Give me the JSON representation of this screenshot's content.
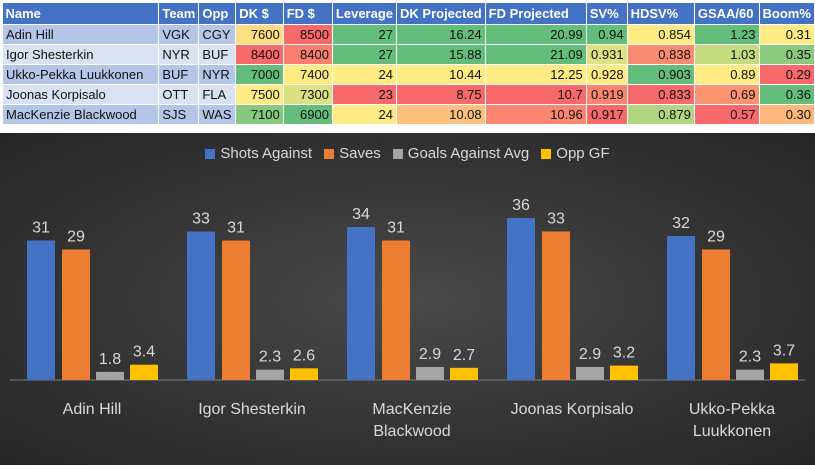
{
  "table": {
    "headers": [
      "Name",
      "Team",
      "Opp",
      "DK $",
      "FD $",
      "Leverage",
      "DK Projected",
      "FD Projected",
      "SV%",
      "HDSV%",
      "GSAA/60",
      "Boom%"
    ],
    "rows": [
      {
        "cells": [
          "Adin Hill",
          "VGK",
          "CGY",
          "7600",
          "8500",
          "27",
          "16.24",
          "20.99",
          "0.94",
          "0.854",
          "1.23",
          "0.31"
        ],
        "colors": [
          "#FFDD82",
          "#F8696B",
          "#63BE7B",
          "#63BE7B",
          "#63BE7B",
          "#63BE7B",
          "#FFEB84",
          "#63BE7B",
          "#FFEB84"
        ]
      },
      {
        "cells": [
          "Igor Shesterkin",
          "NYR",
          "BUF",
          "8400",
          "8400",
          "27",
          "15.88",
          "21.09",
          "0.931",
          "0.838",
          "1.03",
          "0.35"
        ],
        "colors": [
          "#F8696B",
          "#F97E6F",
          "#63BE7B",
          "#63BE7B",
          "#63BE7B",
          "#DCE282",
          "#FA8B71",
          "#C5DB80",
          "#8ACA7E"
        ]
      },
      {
        "cells": [
          "Ukko-Pekka Luukkonen",
          "BUF",
          "NYR",
          "7000",
          "7400",
          "24",
          "10.44",
          "12.25",
          "0.928",
          "0.903",
          "0.89",
          "0.29"
        ],
        "colors": [
          "#63BE7B",
          "#FFEB84",
          "#FFEB84",
          "#FFEB84",
          "#FFEB84",
          "#FFEB84",
          "#63BE7B",
          "#FFEB84",
          "#F8696B"
        ]
      },
      {
        "cells": [
          "Joonas Korpisalo",
          "OTT",
          "FLA",
          "7500",
          "7300",
          "23",
          "8.75",
          "10.7",
          "0.919",
          "0.833",
          "0.69",
          "0.36"
        ],
        "colors": [
          "#FFEB84",
          "#DCE282",
          "#F8696B",
          "#F8696B",
          "#F8696B",
          "#FA8570",
          "#F8696B",
          "#FA9473",
          "#63BE7B"
        ]
      },
      {
        "cells": [
          "MacKenzie Blackwood",
          "SJS",
          "WAS",
          "7100",
          "6900",
          "24",
          "10.08",
          "10.96",
          "0.917",
          "0.879",
          "0.57",
          "0.30"
        ],
        "colors": [
          "#86C97E",
          "#63BE7B",
          "#FFEB84",
          "#FDC07C",
          "#FA8570",
          "#F8696B",
          "#B1D580",
          "#F8696B",
          "#FDB77A"
        ]
      }
    ]
  },
  "chart_data": {
    "type": "bar",
    "categories": [
      "Adin Hill",
      "Igor Shesterkin",
      "MacKenzie Blackwood",
      "Joonas Korpisalo",
      "Ukko-Pekka Luukkonen"
    ],
    "category_lines": [
      [
        "Adin Hill"
      ],
      [
        "Igor Shesterkin"
      ],
      [
        "MacKenzie",
        "Blackwood"
      ],
      [
        "Joonas Korpisalo"
      ],
      [
        "Ukko-Pekka",
        "Luukkonen"
      ]
    ],
    "series": [
      {
        "name": "Shots Against",
        "color": "#4472C4",
        "values": [
          31,
          33,
          34,
          36,
          32
        ]
      },
      {
        "name": "Saves",
        "color": "#ED7D31",
        "values": [
          29,
          31,
          31,
          33,
          29
        ]
      },
      {
        "name": "Goals Against Avg",
        "color": "#A5A5A5",
        "values": [
          1.8,
          2.3,
          2.9,
          2.9,
          2.3
        ]
      },
      {
        "name": "Opp GF",
        "color": "#FFC000",
        "values": [
          3.4,
          2.6,
          2.7,
          3.2,
          3.7
        ]
      }
    ],
    "ylim": [
      0,
      36
    ],
    "grid": false,
    "legend": "top"
  }
}
